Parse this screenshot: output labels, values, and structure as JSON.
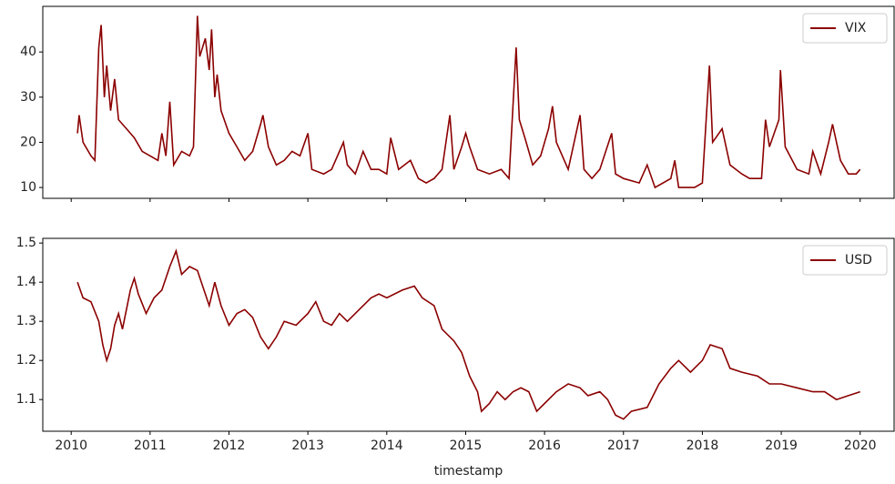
{
  "chart_data": [
    {
      "type": "line",
      "x": [
        2010.08,
        2010.1,
        2010.15,
        2010.25,
        2010.3,
        2010.35,
        2010.38,
        2010.42,
        2010.45,
        2010.5,
        2010.55,
        2010.6,
        2010.7,
        2010.8,
        2010.9,
        2011.0,
        2011.1,
        2011.15,
        2011.2,
        2011.25,
        2011.3,
        2011.4,
        2011.5,
        2011.55,
        2011.6,
        2011.63,
        2011.7,
        2011.75,
        2011.78,
        2011.82,
        2011.85,
        2011.9,
        2012.0,
        2012.1,
        2012.2,
        2012.3,
        2012.4,
        2012.43,
        2012.5,
        2012.6,
        2012.7,
        2012.8,
        2012.9,
        2013.0,
        2013.05,
        2013.2,
        2013.3,
        2013.45,
        2013.5,
        2013.6,
        2013.7,
        2013.8,
        2013.9,
        2014.0,
        2014.05,
        2014.15,
        2014.3,
        2014.4,
        2014.5,
        2014.6,
        2014.7,
        2014.8,
        2014.85,
        2014.95,
        2015.0,
        2015.05,
        2015.15,
        2015.3,
        2015.45,
        2015.55,
        2015.64,
        2015.68,
        2015.75,
        2015.85,
        2015.95,
        2016.05,
        2016.1,
        2016.15,
        2016.3,
        2016.45,
        2016.5,
        2016.6,
        2016.7,
        2016.85,
        2016.9,
        2017.0,
        2017.2,
        2017.3,
        2017.4,
        2017.6,
        2017.65,
        2017.7,
        2017.9,
        2018.0,
        2018.09,
        2018.13,
        2018.25,
        2018.35,
        2018.5,
        2018.6,
        2018.75,
        2018.8,
        2018.85,
        2018.97,
        2018.99,
        2019.05,
        2019.2,
        2019.35,
        2019.4,
        2019.5,
        2019.6,
        2019.65,
        2019.75,
        2019.85,
        2019.95,
        2020.0
      ],
      "series": [
        {
          "name": "VIX",
          "color": "#8b0000",
          "values": [
            22,
            26,
            20,
            17,
            16,
            41,
            46,
            30,
            37,
            27,
            34,
            25,
            23,
            21,
            18,
            17,
            16,
            22,
            17,
            29,
            15,
            18,
            17,
            19,
            48,
            39,
            43,
            36,
            45,
            30,
            35,
            27,
            22,
            19,
            16,
            18,
            24,
            26,
            19,
            15,
            16,
            18,
            17,
            22,
            14,
            13,
            14,
            20,
            15,
            13,
            18,
            14,
            14,
            13,
            21,
            14,
            16,
            12,
            11,
            12,
            14,
            26,
            14,
            19,
            22,
            19,
            14,
            13,
            14,
            12,
            41,
            25,
            21,
            15,
            17,
            23,
            28,
            20,
            14,
            26,
            14,
            12,
            14,
            22,
            13,
            12,
            11,
            15,
            10,
            12,
            16,
            10,
            10,
            11,
            37,
            20,
            23,
            15,
            13,
            12,
            12,
            25,
            19,
            25,
            36,
            19,
            14,
            13,
            18,
            13,
            20,
            24,
            16,
            13,
            13,
            14
          ]
        }
      ],
      "xlim": [
        2009.64,
        2020.43
      ],
      "ylim": [
        7.6,
        50.1
      ],
      "yticks": [
        10,
        20,
        30,
        40
      ],
      "legend": "upper right"
    },
    {
      "type": "line",
      "x": [
        2010.08,
        2010.15,
        2010.25,
        2010.35,
        2010.4,
        2010.45,
        2010.5,
        2010.55,
        2010.6,
        2010.65,
        2010.75,
        2010.8,
        2010.85,
        2010.95,
        2011.05,
        2011.15,
        2011.25,
        2011.33,
        2011.4,
        2011.5,
        2011.6,
        2011.7,
        2011.75,
        2011.82,
        2011.9,
        2012.0,
        2012.1,
        2012.2,
        2012.3,
        2012.4,
        2012.5,
        2012.6,
        2012.7,
        2012.85,
        2013.0,
        2013.1,
        2013.2,
        2013.3,
        2013.4,
        2013.5,
        2013.65,
        2013.8,
        2013.9,
        2014.0,
        2014.2,
        2014.35,
        2014.45,
        2014.6,
        2014.7,
        2014.85,
        2014.95,
        2015.05,
        2015.15,
        2015.2,
        2015.3,
        2015.4,
        2015.5,
        2015.6,
        2015.7,
        2015.8,
        2015.9,
        2016.0,
        2016.15,
        2016.3,
        2016.45,
        2016.55,
        2016.7,
        2016.8,
        2016.9,
        2017.0,
        2017.1,
        2017.3,
        2017.45,
        2017.6,
        2017.7,
        2017.85,
        2018.0,
        2018.1,
        2018.25,
        2018.35,
        2018.5,
        2018.7,
        2018.85,
        2019.0,
        2019.2,
        2019.4,
        2019.55,
        2019.7,
        2019.85,
        2020.0
      ],
      "series": [
        {
          "name": "USD",
          "color": "#8b0000",
          "values": [
            1.4,
            1.36,
            1.35,
            1.3,
            1.24,
            1.2,
            1.23,
            1.29,
            1.32,
            1.28,
            1.38,
            1.41,
            1.37,
            1.32,
            1.36,
            1.38,
            1.44,
            1.48,
            1.42,
            1.44,
            1.43,
            1.37,
            1.34,
            1.4,
            1.34,
            1.29,
            1.32,
            1.33,
            1.31,
            1.26,
            1.23,
            1.26,
            1.3,
            1.29,
            1.32,
            1.35,
            1.3,
            1.29,
            1.32,
            1.3,
            1.33,
            1.36,
            1.37,
            1.36,
            1.38,
            1.39,
            1.36,
            1.34,
            1.28,
            1.25,
            1.22,
            1.16,
            1.12,
            1.07,
            1.09,
            1.12,
            1.1,
            1.12,
            1.13,
            1.12,
            1.07,
            1.09,
            1.12,
            1.14,
            1.13,
            1.11,
            1.12,
            1.1,
            1.06,
            1.05,
            1.07,
            1.08,
            1.14,
            1.18,
            1.2,
            1.17,
            1.2,
            1.24,
            1.23,
            1.18,
            1.17,
            1.16,
            1.14,
            1.14,
            1.13,
            1.12,
            1.12,
            1.1,
            1.11,
            1.12
          ]
        }
      ],
      "xlim": [
        2009.64,
        2020.43
      ],
      "ylim": [
        1.019,
        1.512
      ],
      "yticks": [
        1.1,
        1.2,
        1.3,
        1.4,
        1.5
      ],
      "xticks": [
        2010,
        2011,
        2012,
        2013,
        2014,
        2015,
        2016,
        2017,
        2018,
        2019,
        2020
      ],
      "xlabel": "timestamp",
      "legend": "upper right"
    }
  ]
}
